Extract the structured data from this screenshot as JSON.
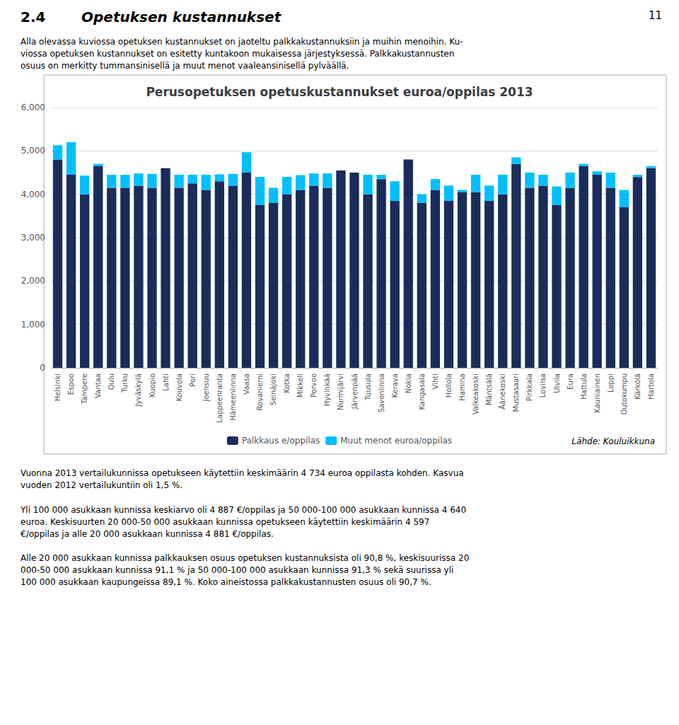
{
  "chart_data": {
    "type": "bar",
    "title": "Perusopetuksen opetuskustannukset euroa/oppilas 2013",
    "categories": [
      "Helsinki",
      "Espoo",
      "Tampere",
      "Vantaa",
      "Oulu",
      "Turku",
      "Jyväskylä",
      "Kuopio",
      "Lahti",
      "Kouvola",
      "Pori",
      "Joensuu",
      "Lappeenranta",
      "Hämeenlinna",
      "Vaasa",
      "Rovaniemi",
      "Seinäjoki",
      "Kotka",
      "Mikkeli",
      "Porvoo",
      "Hyvinkää",
      "Nurmijärvi",
      "Järvenpää",
      "Tuusula",
      "Savonlinna",
      "Kerava",
      "Nokia",
      "Kangasala",
      "Vihti",
      "Hollola",
      "Hamina",
      "Valkeakoski",
      "Mäntsälä",
      "Äänekoski",
      "Mustasaari",
      "Pirkkala",
      "Loviisa",
      "Ulvila",
      "Eura",
      "Hattula",
      "Kauniainen",
      "Loppi",
      "Outokumpu",
      "Kärkölä",
      "Hartola"
    ],
    "series": [
      {
        "name": "Palkkaus e/oppilas",
        "color": "#1a2d5a",
        "values": [
          4800,
          4450,
          4000,
          4650,
          4150,
          4150,
          4200,
          4150,
          4600,
          4150,
          4250,
          4100,
          4300,
          4200,
          4500,
          3750,
          3800,
          4000,
          4100,
          4200,
          4150,
          4550,
          4500,
          4000,
          4350,
          3850,
          4800,
          3800,
          4100,
          3850,
          4050,
          4050,
          3850,
          4000,
          4700,
          4150,
          4200,
          3750,
          4150,
          4650,
          4450,
          4150,
          3700,
          4400,
          4600
        ]
      },
      {
        "name": "Muut menot euroa/oppilas",
        "color": "#00bfff",
        "values": [
          330,
          750,
          430,
          50,
          300,
          300,
          280,
          320,
          0,
          300,
          200,
          350,
          160,
          270,
          470,
          650,
          350,
          400,
          340,
          280,
          330,
          0,
          0,
          450,
          100,
          450,
          0,
          200,
          250,
          350,
          50,
          400,
          350,
          450,
          150,
          350,
          250,
          430,
          350,
          50,
          80,
          350,
          400,
          50,
          50
        ]
      }
    ],
    "stacked": true,
    "ylim": [
      0,
      6000
    ],
    "yticks": [
      0,
      1000,
      2000,
      3000,
      4000,
      5000,
      6000
    ],
    "grid": true,
    "legend": "bottom",
    "annotations": [
      "2.4",
      "Opetuksen kustannukset",
      "11",
      "Alla olevassa kuviossa opetuksen kustannukset on jaoteltu palkkakustannuksiin ja muihin menoihin. Ku-\nviossa opetuksen kustannukset on esitetty kuntakoon mukaisessa järjestyksessä. Palkkakustannusten\nosuus on merkitty tummansinisellä ja muut menot vaaleansinisellä pylväällä.",
      "Vuonna 2013 vertailukunnissa opetukseen käytettiin keskimäärin 4 734 euroa oppilasta kohden. Kasvua\nvuoden 2012 vertailukuntiin oli 1,5 %.",
      "Yli 100 000 asukkaan kunnissa keskiarvo oli 4 887 €/oppilas ja 50 000-100 000 asukkaan kunnissa 4 640\neuroa. Keskisuurten 20 000-50 000 asukkaan kunnissa opetukseen käytettiin keskimäärin 4 597\n€/oppilas ja alle 20 000 asukkaan kunnissa 4 881 €/oppilas.",
      "Alle 20 000 asukkaan kunnissa palkkauksen osuus opetuksen kustannuksista oli 90,8 %, keskisuurissa 20\n000-50 000 asukkaan kunnissa 91,1 % ja 50 000-100 000 asukkaan kunnissa 91,3 % sekä suurissa yli\n100 000 asukkaan kaupungeissa 89,1 %. Koko aineistossa palkkakustannusten osuus oli 90,7 %.",
      "Lähde: Kouluikkuna"
    ]
  }
}
